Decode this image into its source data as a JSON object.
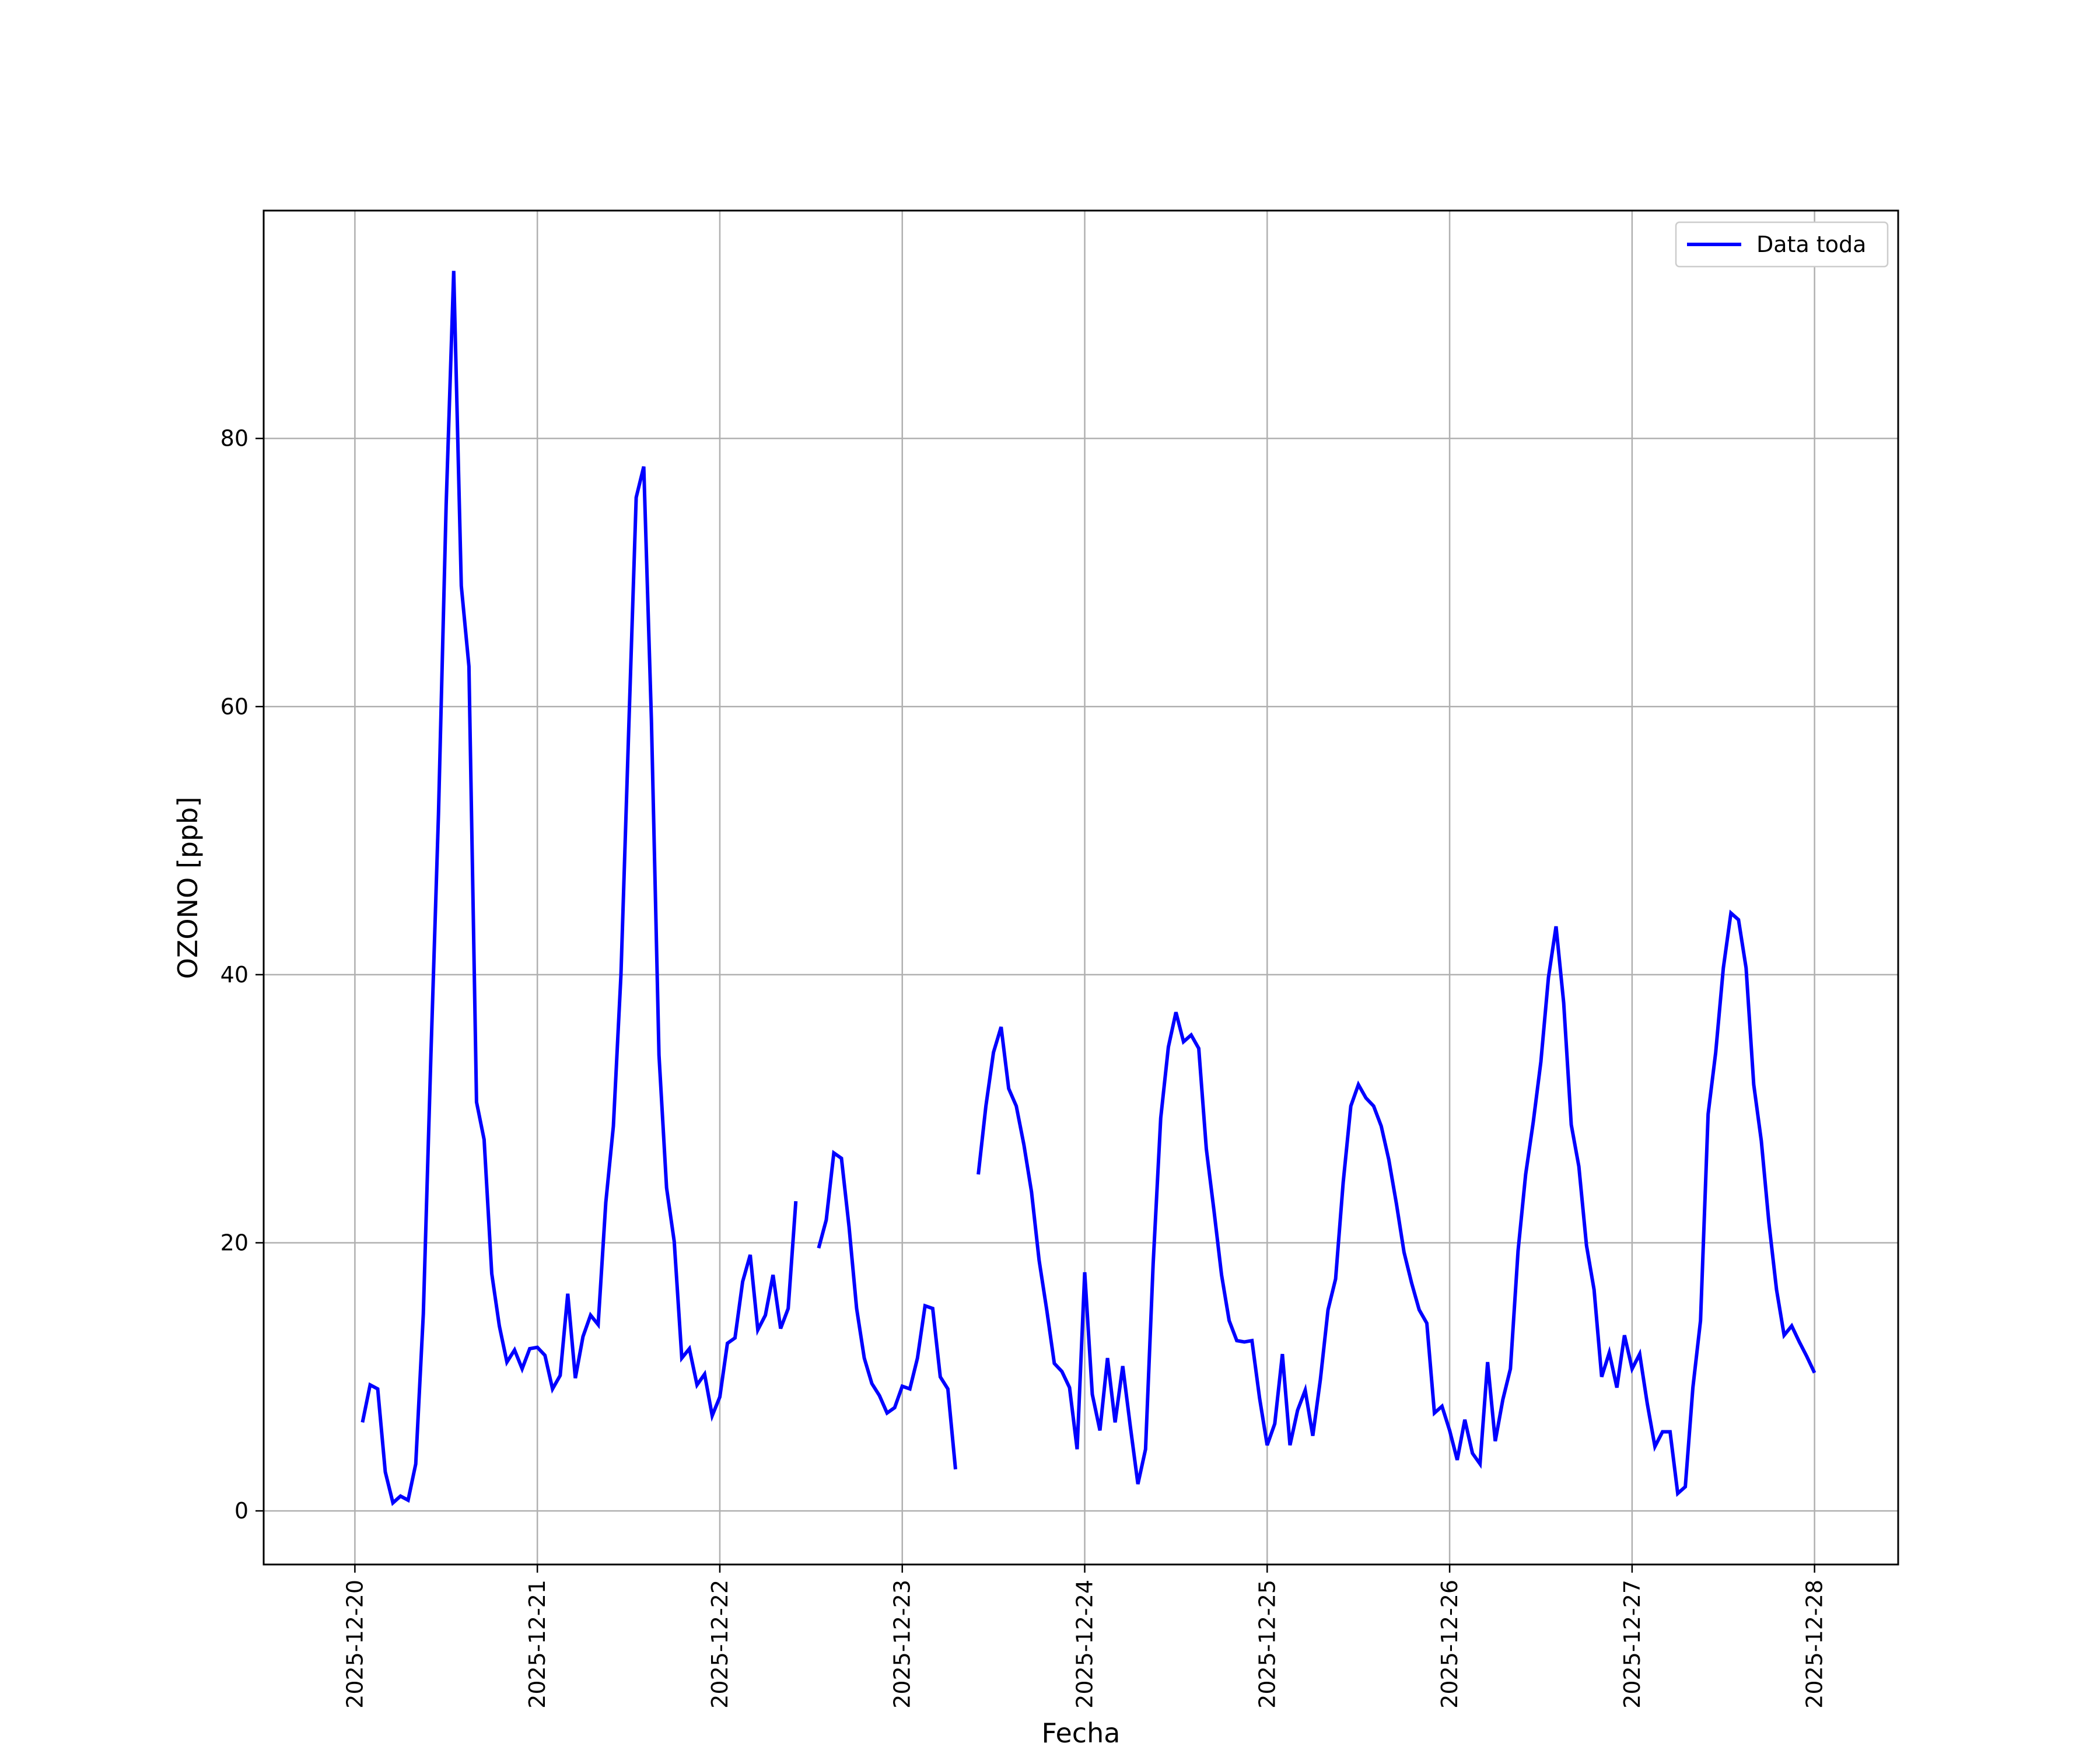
{
  "chart_data": {
    "type": "line",
    "xlabel": "Fecha",
    "ylabel": "OZONO [ppb]",
    "ylim": [
      -4,
      97
    ],
    "xlim": [
      "2025-12-19T12:00",
      "2025-12-28T11:00"
    ],
    "grid": true,
    "legend": "top-right",
    "x_ticks": [
      "2025-12-20",
      "2025-12-21",
      "2025-12-22",
      "2025-12-23",
      "2025-12-24",
      "2025-12-25",
      "2025-12-26",
      "2025-12-27",
      "2025-12-28"
    ],
    "y_ticks": [
      0,
      20,
      40,
      60,
      80
    ],
    "series": [
      {
        "name": "Data toda",
        "color": "#0000ff",
        "points": [
          [
            "2025-12-20T01:00",
            6.6
          ],
          [
            "2025-12-20T02:00",
            9.4
          ],
          [
            "2025-12-20T03:00",
            9.1
          ],
          [
            "2025-12-20T04:00",
            2.9
          ],
          [
            "2025-12-20T05:00",
            0.6
          ],
          [
            "2025-12-20T06:00",
            1.1
          ],
          [
            "2025-12-20T07:00",
            0.8
          ],
          [
            "2025-12-20T08:00",
            3.5
          ],
          [
            "2025-12-20T09:00",
            14.7
          ],
          [
            "2025-12-20T10:00",
            34.0
          ],
          [
            "2025-12-20T11:00",
            52.0
          ],
          [
            "2025-12-20T12:00",
            75.0
          ],
          [
            "2025-12-20T13:00",
            92.5
          ],
          [
            "2025-12-20T14:00",
            69.0
          ],
          [
            "2025-12-20T15:00",
            63.0
          ],
          [
            "2025-12-20T16:00",
            30.5
          ],
          [
            "2025-12-20T17:00",
            27.7
          ],
          [
            "2025-12-20T18:00",
            17.7
          ],
          [
            "2025-12-20T19:00",
            13.8
          ],
          [
            "2025-12-20T20:00",
            11.1
          ],
          [
            "2025-12-20T21:00",
            12.0
          ],
          [
            "2025-12-20T22:00",
            10.6
          ],
          [
            "2025-12-20T23:00",
            12.1
          ],
          [
            "2025-12-21T00:00",
            12.2
          ],
          [
            "2025-12-21T01:00",
            11.6
          ],
          [
            "2025-12-21T02:00",
            9.1
          ],
          [
            "2025-12-21T03:00",
            10.1
          ],
          [
            "2025-12-21T04:00",
            16.2
          ],
          [
            "2025-12-21T05:00",
            9.9
          ],
          [
            "2025-12-21T06:00",
            13.0
          ],
          [
            "2025-12-21T07:00",
            14.6
          ],
          [
            "2025-12-21T08:00",
            13.9
          ],
          [
            "2025-12-21T09:00",
            23.0
          ],
          [
            "2025-12-21T10:00",
            28.7
          ],
          [
            "2025-12-21T11:00",
            40.0
          ],
          [
            "2025-12-21T12:00",
            58.0
          ],
          [
            "2025-12-21T13:00",
            75.6
          ],
          [
            "2025-12-21T14:00",
            77.9
          ],
          [
            "2025-12-21T15:00",
            59.0
          ],
          [
            "2025-12-21T16:00",
            34.0
          ],
          [
            "2025-12-21T17:00",
            24.1
          ],
          [
            "2025-12-21T18:00",
            20.1
          ],
          [
            "2025-12-21T19:00",
            11.4
          ],
          [
            "2025-12-21T20:00",
            12.1
          ],
          [
            "2025-12-21T21:00",
            9.4
          ],
          [
            "2025-12-21T22:00",
            10.2
          ],
          [
            "2025-12-21T23:00",
            7.1
          ],
          [
            "2025-12-22T00:00",
            8.5
          ],
          [
            "2025-12-22T01:00",
            12.5
          ],
          [
            "2025-12-22T02:00",
            12.9
          ],
          [
            "2025-12-22T03:00",
            17.1
          ],
          [
            "2025-12-22T04:00",
            19.1
          ],
          [
            "2025-12-22T05:00",
            13.5
          ],
          [
            "2025-12-22T06:00",
            14.6
          ],
          [
            "2025-12-22T07:00",
            17.6
          ],
          [
            "2025-12-22T08:00",
            13.6
          ],
          [
            "2025-12-22T09:00",
            15.1
          ],
          [
            "2025-12-22T10:00",
            23.1
          ],
          null,
          [
            "2025-12-22T13:00",
            19.6
          ],
          [
            "2025-12-22T14:00",
            21.7
          ],
          [
            "2025-12-22T15:00",
            26.7
          ],
          [
            "2025-12-22T16:00",
            26.3
          ],
          [
            "2025-12-22T17:00",
            21.2
          ],
          [
            "2025-12-22T18:00",
            15.1
          ],
          [
            "2025-12-22T19:00",
            11.4
          ],
          [
            "2025-12-22T20:00",
            9.5
          ],
          [
            "2025-12-22T21:00",
            8.6
          ],
          [
            "2025-12-22T22:00",
            7.3
          ],
          [
            "2025-12-22T23:00",
            7.7
          ],
          [
            "2025-12-23T00:00",
            9.3
          ],
          [
            "2025-12-23T01:00",
            9.1
          ],
          [
            "2025-12-23T02:00",
            11.4
          ],
          [
            "2025-12-23T03:00",
            15.3
          ],
          [
            "2025-12-23T04:00",
            15.1
          ],
          [
            "2025-12-23T05:00",
            10.0
          ],
          [
            "2025-12-23T06:00",
            9.1
          ],
          [
            "2025-12-23T07:00",
            3.1
          ],
          null,
          [
            "2025-12-23T10:00",
            25.1
          ],
          [
            "2025-12-23T11:00",
            30.2
          ],
          [
            "2025-12-23T12:00",
            34.2
          ],
          [
            "2025-12-23T13:00",
            36.1
          ],
          [
            "2025-12-23T14:00",
            31.5
          ],
          [
            "2025-12-23T15:00",
            30.2
          ],
          [
            "2025-12-23T16:00",
            27.3
          ],
          [
            "2025-12-23T17:00",
            23.8
          ],
          [
            "2025-12-23T18:00",
            18.7
          ],
          [
            "2025-12-23T19:00",
            15.0
          ],
          [
            "2025-12-23T20:00",
            11.0
          ],
          [
            "2025-12-23T21:00",
            10.4
          ],
          [
            "2025-12-23T22:00",
            9.2
          ],
          [
            "2025-12-23T23:00",
            4.6
          ],
          [
            "2025-12-24T00:00",
            17.8
          ],
          [
            "2025-12-24T01:00",
            8.7
          ],
          [
            "2025-12-24T02:00",
            6.0
          ],
          [
            "2025-12-24T03:00",
            11.4
          ],
          [
            "2025-12-24T04:00",
            6.6
          ],
          [
            "2025-12-24T05:00",
            10.8
          ],
          [
            "2025-12-24T06:00",
            6.3
          ],
          [
            "2025-12-24T07:00",
            2.0
          ],
          [
            "2025-12-24T08:00",
            4.6
          ],
          [
            "2025-12-24T09:00",
            18.4
          ],
          [
            "2025-12-24T10:00",
            29.3
          ],
          [
            "2025-12-24T11:00",
            34.6
          ],
          [
            "2025-12-24T12:00",
            37.2
          ],
          [
            "2025-12-24T13:00",
            35.0
          ],
          [
            "2025-12-24T14:00",
            35.5
          ],
          [
            "2025-12-24T15:00",
            34.5
          ],
          [
            "2025-12-24T16:00",
            27.0
          ],
          [
            "2025-12-24T17:00",
            22.4
          ],
          [
            "2025-12-24T18:00",
            17.6
          ],
          [
            "2025-12-24T19:00",
            14.2
          ],
          [
            "2025-12-24T20:00",
            12.7
          ],
          [
            "2025-12-24T21:00",
            12.6
          ],
          [
            "2025-12-24T22:00",
            12.7
          ],
          [
            "2025-12-24T23:00",
            8.4
          ],
          [
            "2025-12-25T00:00",
            4.9
          ],
          [
            "2025-12-25T01:00",
            6.5
          ],
          [
            "2025-12-25T02:00",
            11.7
          ],
          [
            "2025-12-25T03:00",
            4.9
          ],
          [
            "2025-12-25T04:00",
            7.5
          ],
          [
            "2025-12-25T05:00",
            9.0
          ],
          [
            "2025-12-25T06:00",
            5.6
          ],
          [
            "2025-12-25T07:00",
            9.8
          ],
          [
            "2025-12-25T08:00",
            15.0
          ],
          [
            "2025-12-25T09:00",
            17.3
          ],
          [
            "2025-12-25T10:00",
            24.5
          ],
          [
            "2025-12-25T11:00",
            30.2
          ],
          [
            "2025-12-25T12:00",
            31.8
          ],
          [
            "2025-12-25T13:00",
            30.8
          ],
          [
            "2025-12-25T14:00",
            30.2
          ],
          [
            "2025-12-25T15:00",
            28.7
          ],
          [
            "2025-12-25T16:00",
            26.2
          ],
          [
            "2025-12-25T17:00",
            22.9
          ],
          [
            "2025-12-25T18:00",
            19.3
          ],
          [
            "2025-12-25T19:00",
            17.0
          ],
          [
            "2025-12-25T20:00",
            15.0
          ],
          [
            "2025-12-25T21:00",
            14.0
          ],
          [
            "2025-12-25T22:00",
            7.3
          ],
          [
            "2025-12-25T23:00",
            7.8
          ],
          [
            "2025-12-26T00:00",
            6.0
          ],
          [
            "2025-12-26T01:00",
            3.8
          ],
          [
            "2025-12-26T02:00",
            6.8
          ],
          [
            "2025-12-26T03:00",
            4.3
          ],
          [
            "2025-12-26T04:00",
            3.5
          ],
          [
            "2025-12-26T05:00",
            11.1
          ],
          [
            "2025-12-26T06:00",
            5.2
          ],
          [
            "2025-12-26T07:00",
            8.3
          ],
          [
            "2025-12-26T08:00",
            10.6
          ],
          [
            "2025-12-26T09:00",
            19.4
          ],
          [
            "2025-12-26T10:00",
            25.1
          ],
          [
            "2025-12-26T11:00",
            29.0
          ],
          [
            "2025-12-26T12:00",
            33.5
          ],
          [
            "2025-12-26T13:00",
            39.8
          ],
          [
            "2025-12-26T14:00",
            43.6
          ],
          [
            "2025-12-26T15:00",
            37.9
          ],
          [
            "2025-12-26T16:00",
            28.8
          ],
          [
            "2025-12-26T17:00",
            25.7
          ],
          [
            "2025-12-26T18:00",
            19.8
          ],
          [
            "2025-12-26T19:00",
            16.5
          ],
          [
            "2025-12-26T20:00",
            10.0
          ],
          [
            "2025-12-26T21:00",
            11.8
          ],
          [
            "2025-12-26T22:00",
            9.2
          ],
          [
            "2025-12-26T23:00",
            13.1
          ],
          [
            "2025-12-27T00:00",
            10.6
          ],
          [
            "2025-12-27T01:00",
            11.7
          ],
          [
            "2025-12-27T02:00",
            8.0
          ],
          [
            "2025-12-27T03:00",
            4.8
          ],
          [
            "2025-12-27T04:00",
            5.9
          ],
          [
            "2025-12-27T05:00",
            5.9
          ],
          [
            "2025-12-27T06:00",
            1.3
          ],
          [
            "2025-12-27T07:00",
            1.8
          ],
          [
            "2025-12-27T08:00",
            9.2
          ],
          [
            "2025-12-27T09:00",
            14.2
          ],
          [
            "2025-12-27T10:00",
            29.6
          ],
          [
            "2025-12-27T11:00",
            34.2
          ],
          [
            "2025-12-27T12:00",
            40.5
          ],
          [
            "2025-12-27T13:00",
            44.6
          ],
          [
            "2025-12-27T14:00",
            44.1
          ],
          [
            "2025-12-27T15:00",
            40.5
          ],
          [
            "2025-12-27T16:00",
            31.8
          ],
          [
            "2025-12-27T17:00",
            27.6
          ],
          [
            "2025-12-27T18:00",
            21.5
          ],
          [
            "2025-12-27T19:00",
            16.5
          ],
          [
            "2025-12-27T20:00",
            13.1
          ],
          [
            "2025-12-27T21:00",
            13.8
          ],
          [
            "2025-12-27T22:00",
            12.6
          ],
          [
            "2025-12-27T23:00",
            11.5
          ],
          [
            "2025-12-28T00:00",
            10.3
          ]
        ]
      }
    ]
  }
}
